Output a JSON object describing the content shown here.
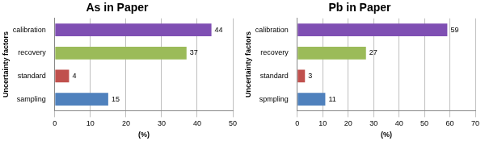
{
  "chart_data": [
    {
      "type": "bar",
      "orientation": "horizontal",
      "title": "As in Paper",
      "xlabel": "(%)",
      "ylabel": "Uncertainty factors",
      "categories": [
        "calibration",
        "recovery",
        "standard",
        "sampling"
      ],
      "values": [
        44,
        37,
        4,
        15
      ],
      "colors": [
        "#7f4fb3",
        "#9bbb59",
        "#c0504d",
        "#4f81bd"
      ],
      "xlim": [
        0,
        50
      ],
      "xticks": [
        0,
        10,
        20,
        30,
        40,
        50
      ],
      "grid": true,
      "data_labels": true
    },
    {
      "type": "bar",
      "orientation": "horizontal",
      "title": "Pb in Paper",
      "xlabel": "(%)",
      "ylabel": "Uncertainty factors",
      "categories": [
        "calibration",
        "recovery",
        "standard",
        "spmpling"
      ],
      "values": [
        59,
        27,
        3,
        11
      ],
      "colors": [
        "#7f4fb3",
        "#9bbb59",
        "#c0504d",
        "#4f81bd"
      ],
      "xlim": [
        0,
        70
      ],
      "xticks": [
        0,
        10,
        20,
        30,
        40,
        50,
        60,
        70
      ],
      "grid": true,
      "data_labels": true
    }
  ]
}
